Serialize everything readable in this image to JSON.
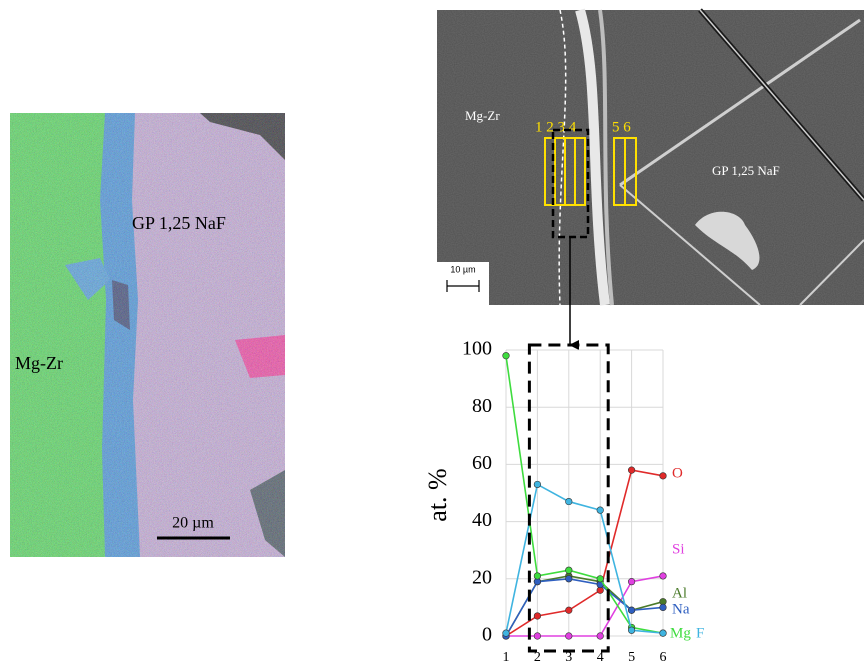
{
  "eds_map": {
    "left_label": "Mg-Zr",
    "right_label": "GP 1,25 NaF",
    "scale_bar": "20 µm"
  },
  "sem_image": {
    "left_label": "Mg-Zr",
    "right_label": "GP 1,25 NaF",
    "scale_bar": "10 µm",
    "box_labels_a": "1 2 3 4",
    "box_labels_b": "5 6"
  },
  "chart_data": {
    "type": "line",
    "y_label": "at. %",
    "categories": [
      "1",
      "2",
      "3",
      "4",
      "5",
      "6"
    ],
    "series": [
      {
        "name": "O",
        "color": "#e02a2a",
        "values": [
          0,
          7,
          9,
          16,
          58,
          56
        ]
      },
      {
        "name": "Si",
        "color": "#e040e0",
        "values": [
          0,
          0,
          0,
          0,
          19,
          21
        ]
      },
      {
        "name": "Al",
        "color": "#4a7a2a",
        "values": [
          0,
          19,
          21,
          19,
          9,
          12
        ]
      },
      {
        "name": "Na",
        "color": "#2f5fc0",
        "values": [
          0,
          19,
          20,
          18,
          9,
          10
        ]
      },
      {
        "name": "Mg",
        "color": "#3edc3e",
        "values": [
          98,
          21,
          23,
          20,
          3,
          1
        ]
      },
      {
        "name": "F",
        "color": "#3fb4e0",
        "values": [
          1,
          53,
          47,
          44,
          2,
          1
        ]
      }
    ],
    "ylim": [
      0,
      100
    ],
    "yticks": [
      0,
      20,
      40,
      60,
      80,
      100
    ],
    "grid": true
  }
}
